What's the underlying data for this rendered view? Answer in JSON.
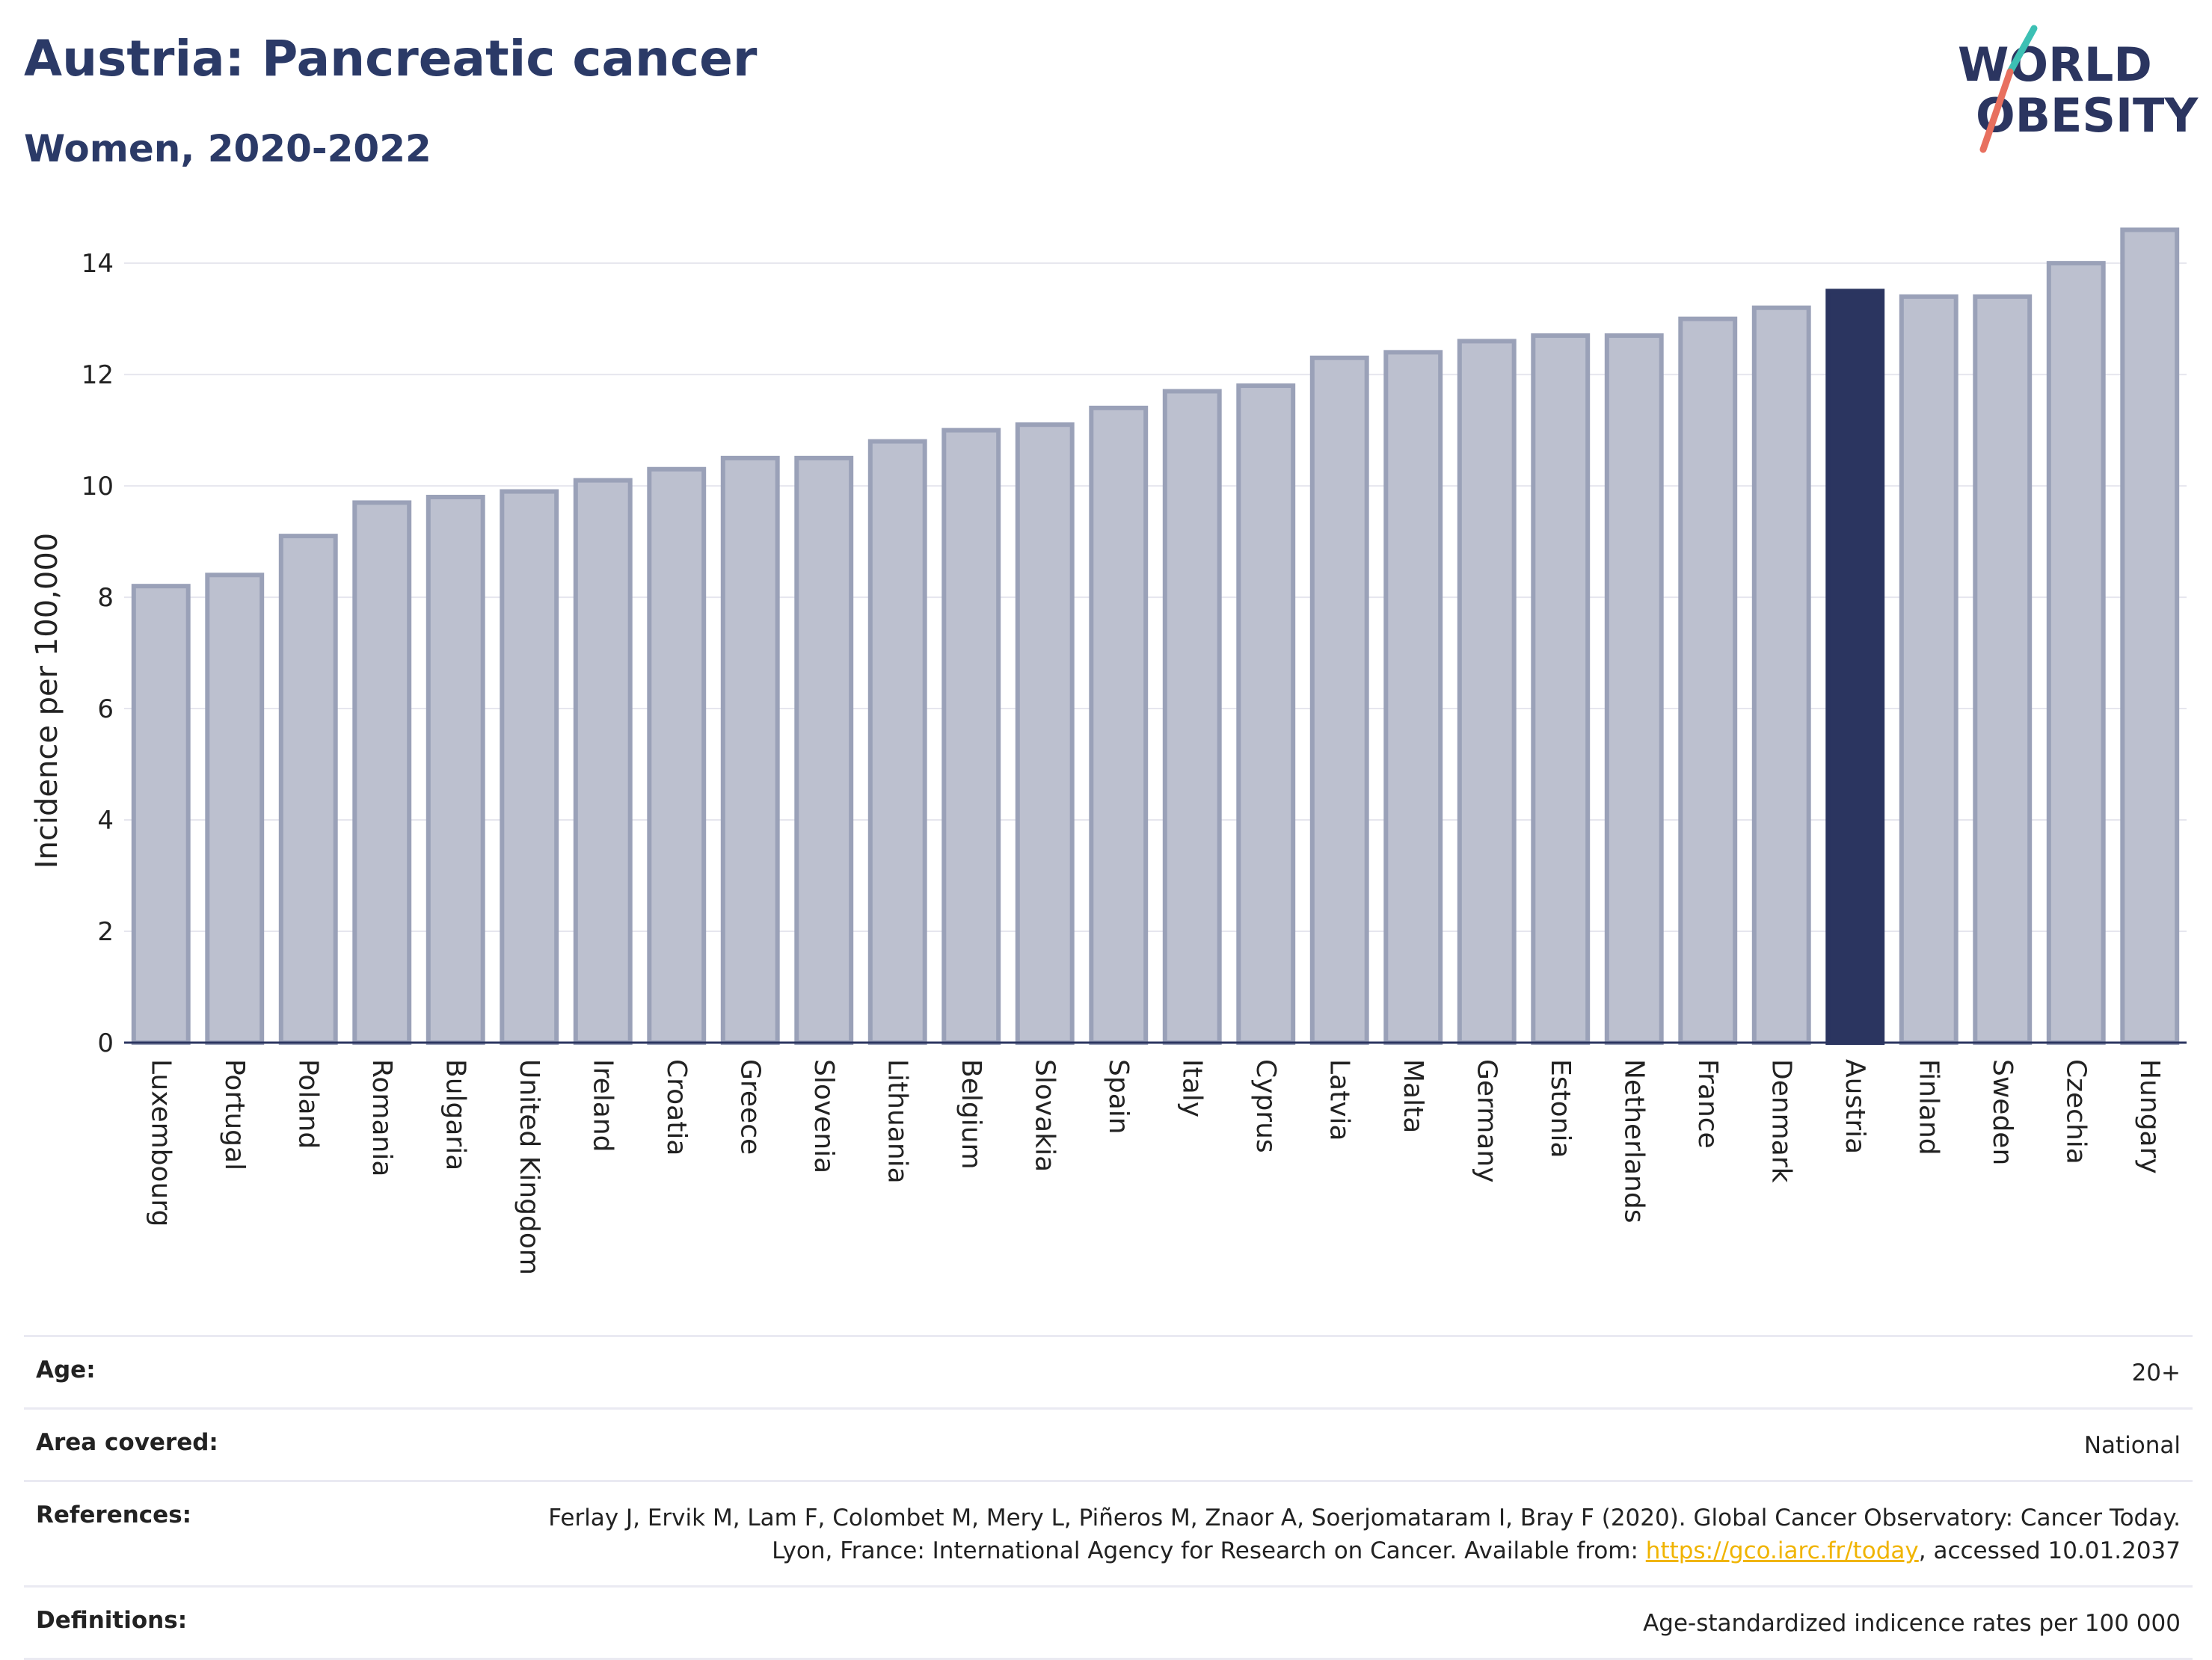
{
  "title": "Austria: Pancreatic cancer",
  "subtitle": "Women, 2020-2022",
  "logo": {
    "line1": "WORLD",
    "line2": "OBESITY"
  },
  "chart_data": {
    "type": "bar",
    "categories": [
      "Luxembourg",
      "Portugal",
      "Poland",
      "Romania",
      "Bulgaria",
      "United Kingdom",
      "Ireland",
      "Croatia",
      "Greece",
      "Slovenia",
      "Lithuania",
      "Belgium",
      "Slovakia",
      "Spain",
      "Italy",
      "Cyprus",
      "Latvia",
      "Malta",
      "Germany",
      "Estonia",
      "Netherlands",
      "France",
      "Denmark",
      "Austria",
      "Finland",
      "Sweden",
      "Czechia",
      "Hungary"
    ],
    "values": [
      8.2,
      8.4,
      9.1,
      9.7,
      9.8,
      9.9,
      10.1,
      10.3,
      10.5,
      10.5,
      10.8,
      11.0,
      11.1,
      11.4,
      11.7,
      11.8,
      12.3,
      12.4,
      12.6,
      12.7,
      12.7,
      13.0,
      13.2,
      13.5,
      13.4,
      13.4,
      14.0,
      14.6
    ],
    "highlight": "Austria",
    "ylabel": "Incidence per 100,000",
    "xlabel": "",
    "ylim": [
      0,
      14.7
    ],
    "yticks": [
      0,
      2,
      4,
      6,
      8,
      10,
      12,
      14
    ],
    "grid": true,
    "colors": {
      "bar": "#bcc0cf",
      "bar_edge": "#9aa1b8",
      "highlight": "#2b3560",
      "grid": "#e6e6ee",
      "axis": "#2b3560"
    }
  },
  "meta": {
    "age_label": "Age:",
    "age_value": "20+",
    "area_label": "Area covered:",
    "area_value": "National",
    "ref_label": "References:",
    "ref_text_1": "Ferlay J, Ervik M, Lam F, Colombet M, Mery L, Piñeros M, Znaor A, Soerjomataram I, Bray F (2020). Global Cancer Observatory: Cancer Today. Lyon, France: International Agency for Research on Cancer. Available from: ",
    "ref_link": "https://gco.iarc.fr/today",
    "ref_text_2": ", accessed 10.01.2037",
    "def_label": "Definitions:",
    "def_value": "Age-standardized indicence rates per 100 000"
  }
}
